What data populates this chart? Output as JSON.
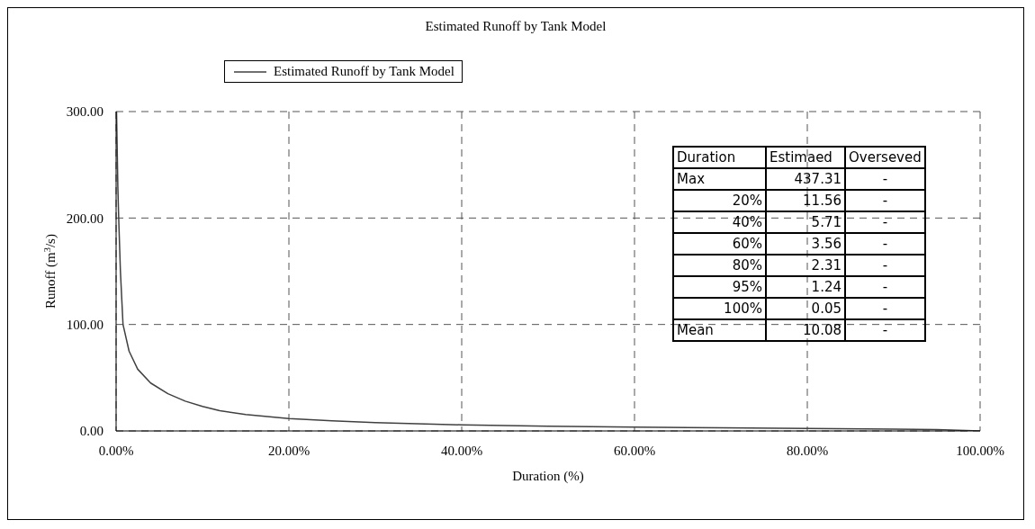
{
  "chart_data": {
    "type": "line",
    "title": "Estimated Runoff by Tank Model",
    "xlabel": "Duration (%)",
    "ylabel": "Runoff (m$^{3}$/s)",
    "x": [
      0.05,
      0.2,
      0.3,
      0.5,
      0.8,
      1.5,
      2.5,
      4,
      6,
      8,
      10,
      12,
      15,
      20,
      25,
      30,
      40,
      50,
      60,
      70,
      80,
      90,
      95,
      100
    ],
    "series": [
      {
        "name": "Estimated Runoff by Tank Model",
        "color": "#404040",
        "values": [
          300,
          230,
          200,
          150,
          100,
          75,
          58,
          45,
          35,
          28,
          23,
          19,
          15.5,
          11.56,
          9.5,
          7.8,
          5.71,
          4.5,
          3.56,
          2.9,
          2.31,
          1.7,
          1.24,
          0.05
        ]
      }
    ],
    "xlim": [
      0,
      100
    ],
    "xticks": [
      {
        "value": 0,
        "label": "0.00%"
      },
      {
        "value": 20,
        "label": "20.00%"
      },
      {
        "value": 40,
        "label": "40.00%"
      },
      {
        "value": 60,
        "label": "60.00%"
      },
      {
        "value": 80,
        "label": "80.00%"
      },
      {
        "value": 100,
        "label": "100.00%"
      }
    ],
    "ylim": [
      0,
      300
    ],
    "yticks": [
      {
        "value": 0,
        "label": "0.00"
      },
      {
        "value": 100,
        "label": "100.00"
      },
      {
        "value": 200,
        "label": "200.00"
      },
      {
        "value": 300,
        "label": "300.00"
      }
    ],
    "grid": true,
    "legend": "top left",
    "marker": "none",
    "line_style": "solid",
    "annotations": [
      "Duration",
      "Estimaed",
      "Overseved",
      "Max",
      "437.31",
      "-",
      "20%",
      "11.56",
      "-",
      "40%",
      "5.71",
      "-",
      "60%",
      "3.56",
      "-",
      "80%",
      "2.31",
      "-",
      "95%",
      "1.24",
      "-",
      "100%",
      "0.05",
      "-",
      "Mean",
      "10.08",
      "-"
    ]
  }
}
